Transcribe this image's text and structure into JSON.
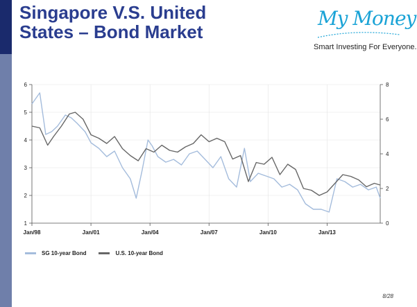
{
  "slide": {
    "title_line1": "Singapore V.S. United",
    "title_line2": "States – Bond Market",
    "page_number": "8/28"
  },
  "logo": {
    "brand": "My Money",
    "tagline": "Smart Investing For Everyone."
  },
  "colors": {
    "sg": "#a4bcdc",
    "us": "#666666",
    "accent": "#2a3d8f",
    "sidebar": "#6f7faa"
  },
  "chart_data": {
    "type": "line",
    "x_ticks": [
      "Jan/98",
      "Jan/01",
      "Jan/04",
      "Jan/07",
      "Jan/10",
      "Jan/13"
    ],
    "x_tick_years": [
      1998,
      2001,
      2004,
      2007,
      2010,
      2013
    ],
    "xlim": [
      1998,
      2015.7
    ],
    "ylim_left": [
      1,
      6
    ],
    "yticks_left": [
      "1",
      "2",
      "3",
      "4",
      "5",
      "6"
    ],
    "ylim_right": [
      0,
      8
    ],
    "yticks_right": [
      "0",
      "2",
      "4",
      "6",
      "8"
    ],
    "grid": true,
    "legend_position": "bottom-left",
    "series": [
      {
        "name": "SG 10-year Bond",
        "axis": "left",
        "x": [
          1998.0,
          1998.4,
          1998.7,
          1999.0,
          1999.3,
          1999.7,
          2000.0,
          2000.3,
          2000.7,
          2001.0,
          2001.4,
          2001.8,
          2002.2,
          2002.6,
          2003.0,
          2003.3,
          2003.6,
          2003.9,
          2004.1,
          2004.4,
          2004.8,
          2005.2,
          2005.6,
          2006.0,
          2006.4,
          2006.8,
          2007.2,
          2007.6,
          2008.0,
          2008.4,
          2008.8,
          2009.1,
          2009.5,
          2009.9,
          2010.3,
          2010.7,
          2011.1,
          2011.5,
          2011.9,
          2012.3,
          2012.7,
          2013.1,
          2013.5,
          2013.9,
          2014.3,
          2014.7,
          2015.1,
          2015.5,
          2015.7
        ],
        "values": [
          5.3,
          5.7,
          4.2,
          4.3,
          4.5,
          4.9,
          4.8,
          4.6,
          4.3,
          3.9,
          3.7,
          3.4,
          3.6,
          3.0,
          2.6,
          1.9,
          2.9,
          4.0,
          3.8,
          3.4,
          3.2,
          3.3,
          3.1,
          3.5,
          3.6,
          3.3,
          3.0,
          3.4,
          2.6,
          2.3,
          3.7,
          2.5,
          2.8,
          2.7,
          2.6,
          2.3,
          2.4,
          2.2,
          1.7,
          1.5,
          1.5,
          1.4,
          2.6,
          2.5,
          2.3,
          2.4,
          2.2,
          2.3,
          1.9
        ]
      },
      {
        "name": "U.S. 10-year Bond",
        "axis": "right",
        "x": [
          1998.0,
          1998.4,
          1998.8,
          1999.1,
          1999.5,
          1999.9,
          2000.2,
          2000.6,
          2001.0,
          2001.4,
          2001.8,
          2002.2,
          2002.6,
          2003.0,
          2003.4,
          2003.8,
          2004.2,
          2004.6,
          2005.0,
          2005.4,
          2005.8,
          2006.2,
          2006.6,
          2007.0,
          2007.4,
          2007.8,
          2008.2,
          2008.6,
          2009.0,
          2009.4,
          2009.8,
          2010.2,
          2010.6,
          2011.0,
          2011.4,
          2011.8,
          2012.2,
          2012.6,
          2013.0,
          2013.4,
          2013.8,
          2014.2,
          2014.6,
          2015.0,
          2015.4,
          2015.7
        ],
        "values": [
          5.6,
          5.5,
          4.5,
          5.0,
          5.6,
          6.3,
          6.4,
          6.0,
          5.1,
          4.9,
          4.6,
          5.0,
          4.3,
          3.9,
          3.6,
          4.3,
          4.1,
          4.5,
          4.2,
          4.1,
          4.4,
          4.6,
          5.1,
          4.7,
          4.9,
          4.7,
          3.7,
          3.9,
          2.4,
          3.5,
          3.4,
          3.8,
          2.8,
          3.4,
          3.1,
          2.0,
          1.9,
          1.6,
          1.8,
          2.3,
          2.8,
          2.7,
          2.5,
          2.1,
          2.3,
          2.2
        ]
      }
    ]
  }
}
